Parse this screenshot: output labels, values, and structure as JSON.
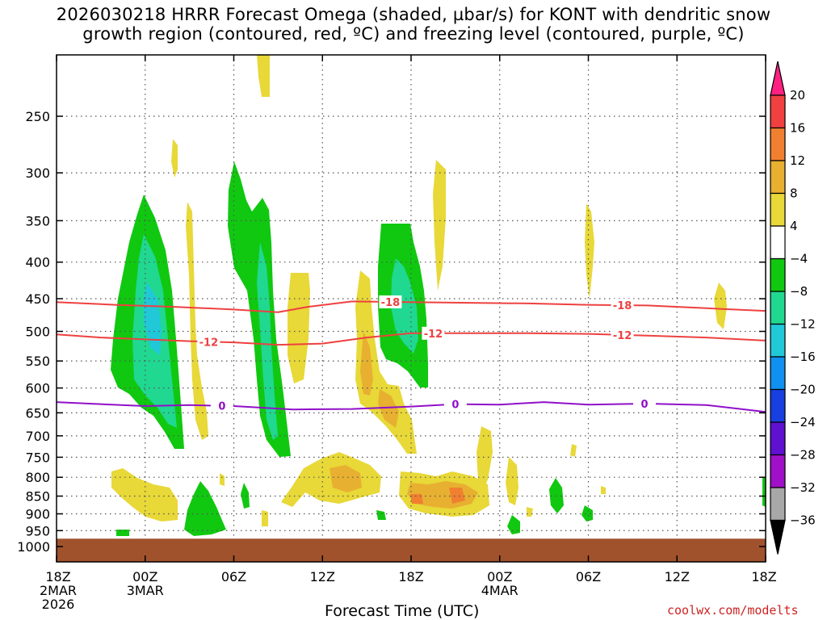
{
  "title_line1": "2026030218 HRRR Forecast Omega (shaded, µbar/s) for KONT with dendritic snow",
  "title_line2": "growth region (contoured, red, ºC) and freezing level (contoured, purple, ºC)",
  "credit": "coolwx.com/modelts",
  "chart_data": {
    "type": "heatmap",
    "title": "2026030218 HRRR Forecast Omega (shaded, µbar/s) for KONT with dendritic snow growth region (contoured, red, ºC) and freezing level (contoured, purple, ºC)",
    "xlabel": "Forecast Time (UTC)",
    "ylabel": "",
    "x_range_hours": [
      0,
      48
    ],
    "y_range_hPa": [
      1000,
      200
    ],
    "y_scale": "log-pressure",
    "grid": true,
    "x_ticks": [
      {
        "hour": 0,
        "label": "18Z",
        "sub1": "2MAR",
        "sub2": "2026"
      },
      {
        "hour": 6,
        "label": "00Z",
        "sub1": "3MAR",
        "sub2": ""
      },
      {
        "hour": 12,
        "label": "06Z",
        "sub1": "",
        "sub2": ""
      },
      {
        "hour": 18,
        "label": "12Z",
        "sub1": "",
        "sub2": ""
      },
      {
        "hour": 24,
        "label": "18Z",
        "sub1": "",
        "sub2": ""
      },
      {
        "hour": 30,
        "label": "00Z",
        "sub1": "4MAR",
        "sub2": ""
      },
      {
        "hour": 36,
        "label": "06Z",
        "sub1": "",
        "sub2": ""
      },
      {
        "hour": 42,
        "label": "12Z",
        "sub1": "",
        "sub2": ""
      },
      {
        "hour": 48,
        "label": "18Z",
        "sub1": "",
        "sub2": ""
      }
    ],
    "y_ticks": [
      250,
      300,
      350,
      400,
      450,
      500,
      550,
      600,
      650,
      700,
      750,
      800,
      850,
      900,
      950,
      1000
    ],
    "colorbar": {
      "label_values": [
        20,
        16,
        12,
        8,
        4,
        -4,
        -8,
        -12,
        -16,
        -20,
        -24,
        -28,
        -32,
        -36
      ],
      "bins": [
        {
          "color": "#ff2080",
          "range": [
            20,
            null
          ]
        },
        {
          "color": "#f04040",
          "range": [
            16,
            20
          ]
        },
        {
          "color": "#f08030",
          "range": [
            12,
            16
          ]
        },
        {
          "color": "#e8b030",
          "range": [
            8,
            12
          ]
        },
        {
          "color": "#e8d838",
          "range": [
            4,
            8
          ]
        },
        {
          "color": "#ffffff",
          "range": [
            -4,
            4
          ]
        },
        {
          "color": "#10c810",
          "range": [
            -8,
            -4
          ]
        },
        {
          "color": "#20d890",
          "range": [
            -12,
            -8
          ]
        },
        {
          "color": "#20c8d8",
          "range": [
            -16,
            -12
          ]
        },
        {
          "color": "#1090f0",
          "range": [
            -20,
            -16
          ]
        },
        {
          "color": "#1840e0",
          "range": [
            -24,
            -20
          ]
        },
        {
          "color": "#6010d0",
          "range": [
            -28,
            -24
          ]
        },
        {
          "color": "#a010c8",
          "range": [
            -32,
            -28
          ]
        },
        {
          "color": "#a8a8a8",
          "range": [
            -36,
            -32
          ]
        },
        {
          "color": "#000000",
          "range": [
            null,
            -36
          ]
        }
      ]
    },
    "contours": [
      {
        "name": "-18",
        "color": "#ee4040",
        "label": "-18",
        "points": [
          [
            0,
            455
          ],
          [
            4,
            459
          ],
          [
            8,
            462
          ],
          [
            12,
            466
          ],
          [
            15,
            470
          ],
          [
            17,
            462
          ],
          [
            20,
            454
          ],
          [
            24,
            455
          ],
          [
            28,
            456
          ],
          [
            32,
            457
          ],
          [
            36,
            459
          ],
          [
            40,
            460
          ],
          [
            44,
            464
          ],
          [
            48,
            468
          ]
        ],
        "label_hours": [
          22.6,
          38.3
        ]
      },
      {
        "name": "-12",
        "color": "#ee4040",
        "label": "-12",
        "points": [
          [
            0,
            505
          ],
          [
            3,
            510
          ],
          [
            6,
            513
          ],
          [
            9,
            516
          ],
          [
            12,
            518
          ],
          [
            15,
            522
          ],
          [
            18,
            520
          ],
          [
            21,
            510
          ],
          [
            24,
            503
          ],
          [
            28,
            503
          ],
          [
            32,
            503
          ],
          [
            36,
            504
          ],
          [
            40,
            507
          ],
          [
            44,
            510
          ],
          [
            48,
            515
          ]
        ],
        "label_hours": [
          10.3,
          25.5,
          38.3
        ]
      },
      {
        "name": "0",
        "color": "#9010c8",
        "label": "0",
        "points": [
          [
            0,
            628
          ],
          [
            3,
            632
          ],
          [
            6,
            636
          ],
          [
            9,
            634
          ],
          [
            12,
            636
          ],
          [
            16,
            643
          ],
          [
            20,
            642
          ],
          [
            24,
            637
          ],
          [
            27,
            632
          ],
          [
            30,
            633
          ],
          [
            33,
            628
          ],
          [
            36,
            633
          ],
          [
            40,
            631
          ],
          [
            44,
            634
          ],
          [
            48,
            648
          ]
        ],
        "label_hours": [
          11.2,
          27.0,
          39.8
        ]
      }
    ],
    "surface": {
      "color": "#a0522d",
      "p_top": 975,
      "p_bottom": 1000
    }
  }
}
